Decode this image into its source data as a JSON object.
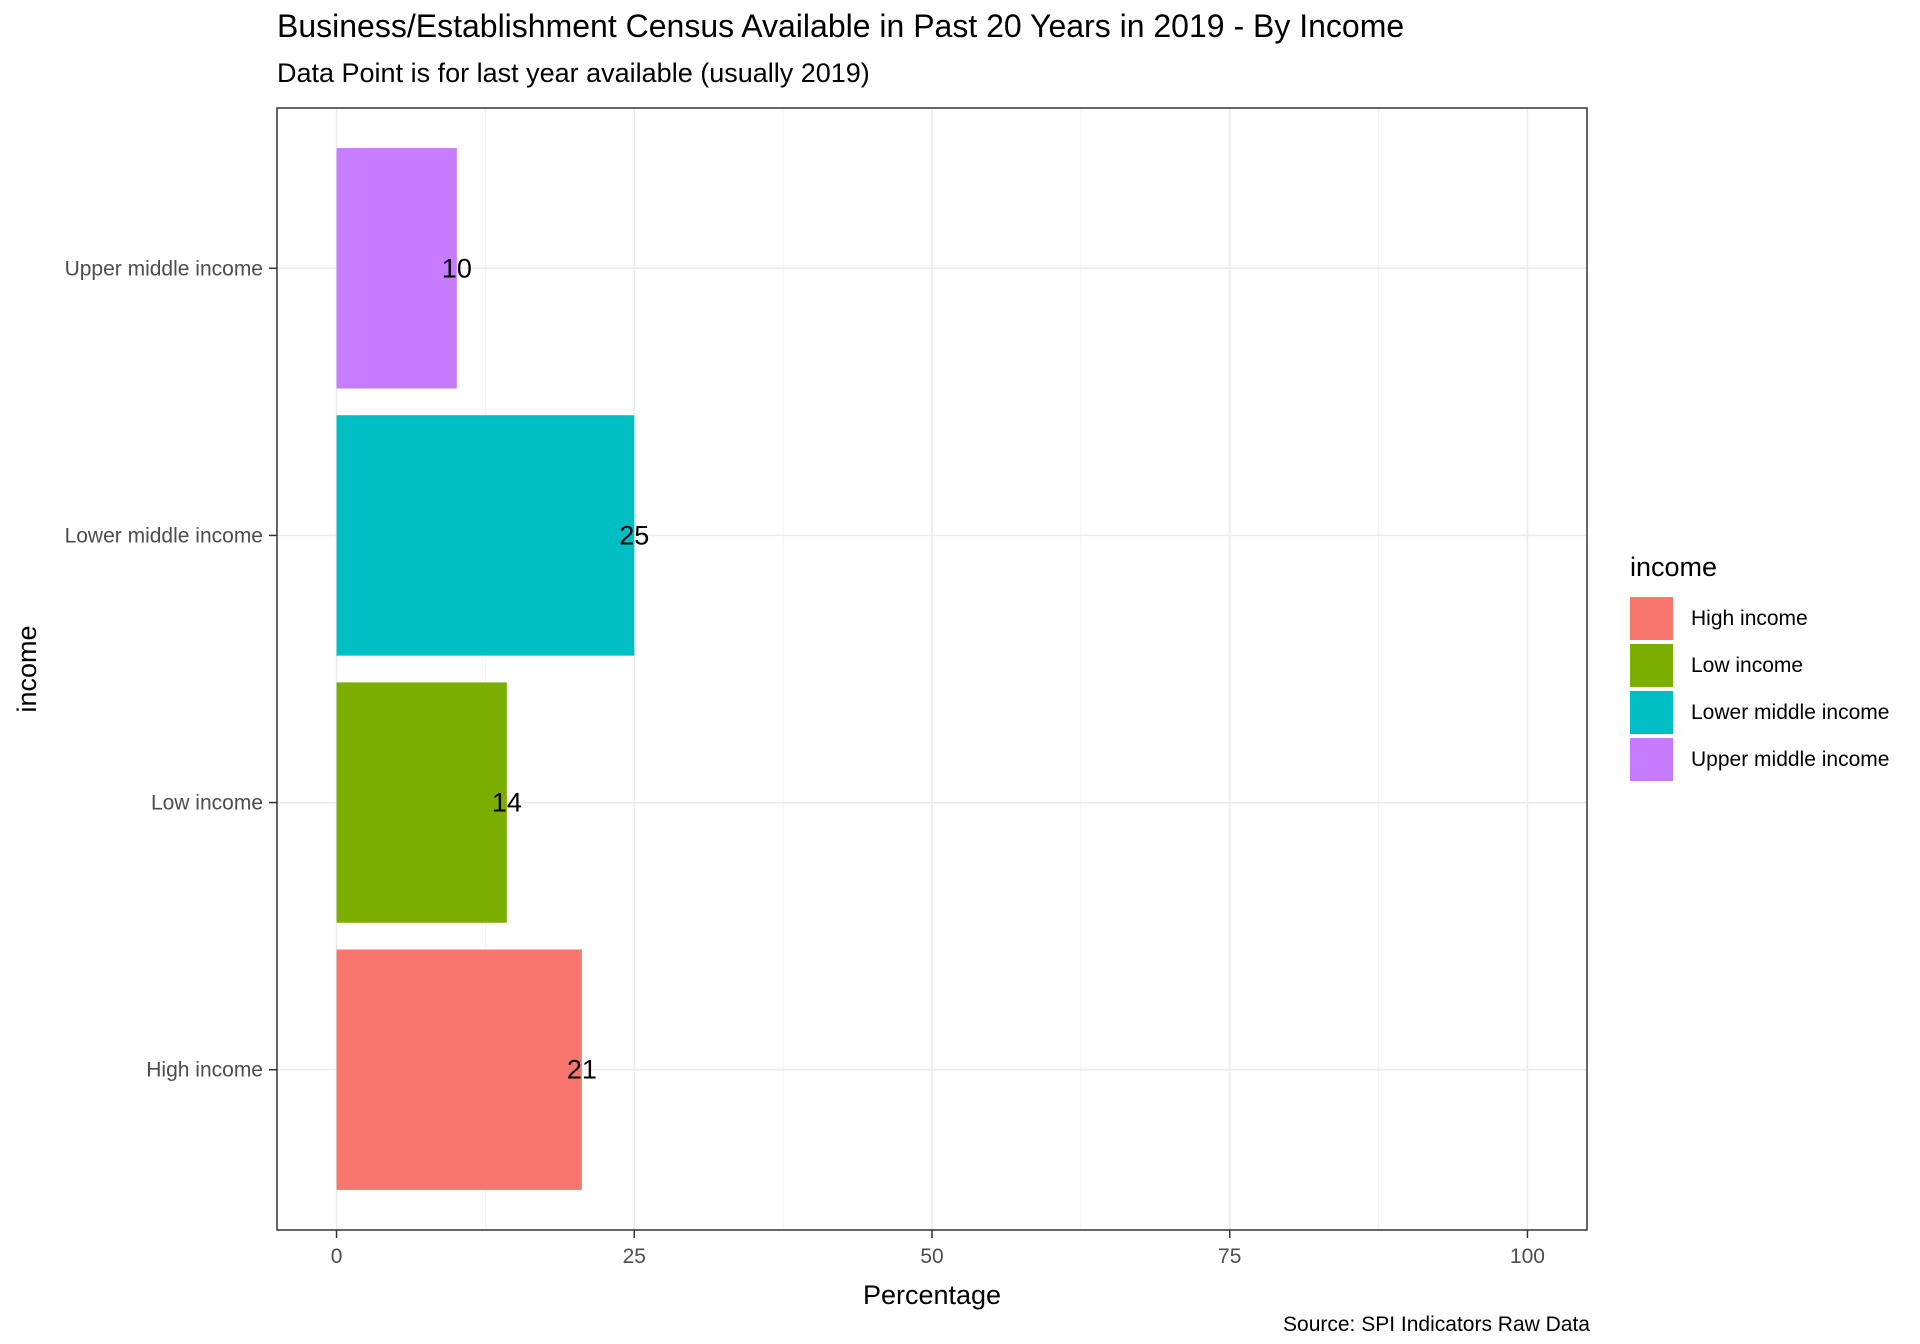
{
  "chart": {
    "title": "Business/Establishment Census Available in Past 20 Years in 2019 - By Income",
    "subtitle": "Data Point is for last year available (usually 2019)",
    "caption": "Source: SPI Indicators Raw Data"
  },
  "legend": {
    "title": "income",
    "items": [
      {
        "label": "High income",
        "color": "#F8766D"
      },
      {
        "label": "Low income",
        "color": "#7CAE00"
      },
      {
        "label": "Lower middle income",
        "color": "#00BFC4"
      },
      {
        "label": "Upper middle income",
        "color": "#C77CFF"
      }
    ]
  },
  "chart_data": {
    "type": "bar",
    "orientation": "horizontal",
    "title": "Business/Establishment Census Available in Past 20 Years in 2019 - By Income",
    "subtitle": "Data Point is for last year available (usually 2019)",
    "xlabel": "Percentage",
    "ylabel": "income",
    "categories": [
      "High income",
      "Low income",
      "Lower middle income",
      "Upper middle income"
    ],
    "values": [
      20.6,
      14.3,
      25,
      10.1
    ],
    "data_labels": [
      "21",
      "14",
      "25",
      "10"
    ],
    "colors": [
      "#F8766D",
      "#7CAE00",
      "#00BFC4",
      "#C77CFF"
    ],
    "xlim": [
      -5,
      105
    ],
    "xticks": [
      0,
      25,
      50,
      75,
      100
    ],
    "xtick_labels": [
      "0",
      "25",
      "50",
      "75",
      "100"
    ],
    "grid": true,
    "legend_position": "right"
  }
}
